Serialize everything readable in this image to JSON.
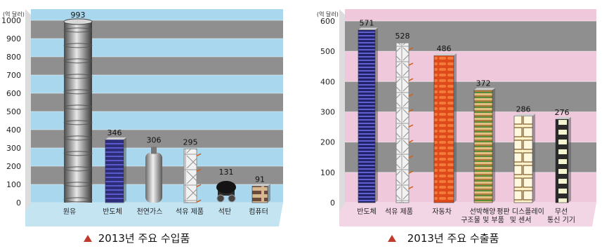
{
  "chart_data": [
    {
      "type": "bar",
      "caption": "2013년 주요 수입품",
      "unit_label": "(억 달러)",
      "categories": [
        "원유",
        "반도체",
        "천연가스",
        "석유 제품",
        "석탄",
        "컴퓨터"
      ],
      "values": [
        993,
        346,
        306,
        295,
        131,
        91
      ],
      "ylim": [
        0,
        1000
      ],
      "yticks": [
        0,
        100,
        200,
        300,
        400,
        500,
        600,
        700,
        800,
        900,
        1000
      ],
      "grid": "alternating bands",
      "colors": {
        "panel": "#a9d8ee",
        "band": "#8f8f8f",
        "floor": "#c5e4f2"
      }
    },
    {
      "type": "bar",
      "caption": "2013년 주요 수출품",
      "unit_label": "(억 달러)",
      "categories": [
        "반도체",
        "석유 제품",
        "자동차",
        "선박해양\n구조물 및 부품",
        "평판 디스플레이\n및 센서",
        "무선\n통신 기기"
      ],
      "values": [
        571,
        528,
        486,
        372,
        286,
        276
      ],
      "ylim": [
        0,
        600
      ],
      "yticks": [
        0,
        100,
        200,
        300,
        400,
        500,
        600
      ],
      "grid": "alternating bands",
      "colors": {
        "panel": "#f0c8dc",
        "band": "#8f8f8f",
        "floor": "#f3d6e6"
      }
    }
  ]
}
